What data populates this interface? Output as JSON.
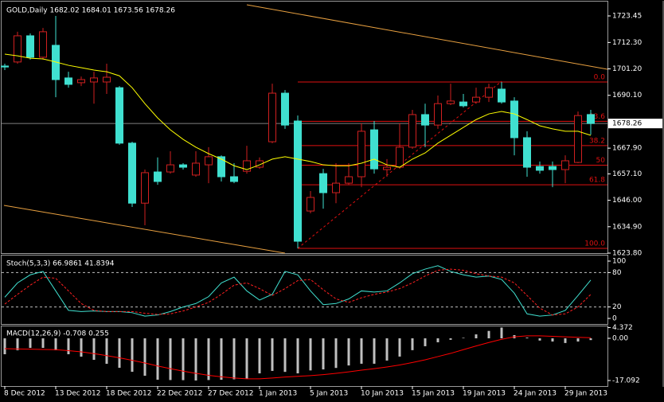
{
  "chart_data": [
    {
      "type": "candlestick",
      "title": "GOLD,Daily  1682.02 1684.01 1673.56 1678.26",
      "categories": [
        "8 Dec 2012",
        null,
        null,
        null,
        "13 Dec 2012",
        null,
        null,
        null,
        "18 Dec 2012",
        null,
        null,
        null,
        "22 Dec 2012",
        null,
        null,
        null,
        "27 Dec 2012",
        null,
        null,
        null,
        "1 Jan 2013",
        null,
        null,
        null,
        "5 Jan 2013",
        null,
        null,
        null,
        "10 Jan 2013",
        null,
        null,
        null,
        "15 Jan 2013",
        null,
        null,
        null,
        "19 Jan 2013",
        null,
        null,
        null,
        "24 Jan 2013",
        null,
        null,
        null,
        "29 Jan 2013",
        null,
        null
      ],
      "open": [
        1702.4,
        1704.1,
        1715.1,
        1706.1,
        1711.1,
        1697.4,
        1695.4,
        1695.7,
        1695.7,
        1693.3,
        1670.0,
        1644.8,
        1657.9,
        1657.9,
        1660.9,
        1656.6,
        1660.9,
        1664.3,
        1655.9,
        1658.2,
        1659.9,
        1670.6,
        1691.0,
        1679.3,
        1641.5,
        1657.2,
        1649.2,
        1653.2,
        1655.9,
        1675.6,
        1658.9,
        1659.9,
        1668.3,
        1682.0,
        1677.6,
        1686.6,
        1687.3,
        1687.3,
        1689.3,
        1692.7,
        1687.7,
        1672.3,
        1660.2,
        1660.2,
        1658.9,
        1661.9,
        1682.02
      ],
      "high": [
        1703.4,
        1716.8,
        1716.1,
        1718.4,
        1723.45,
        1700.0,
        1698.0,
        1700.0,
        1703.4,
        1694.0,
        1670.6,
        1658.9,
        1664.0,
        1666.6,
        1661.6,
        1666.6,
        1668.3,
        1664.9,
        1661.6,
        1668.9,
        1664.0,
        1695.0,
        1692.3,
        1681.6,
        1649.9,
        1659.2,
        1661.6,
        1661.6,
        1678.3,
        1679.3,
        1663.3,
        1678.3,
        1684.0,
        1686.6,
        1690.0,
        1695.0,
        1690.7,
        1693.3,
        1695.0,
        1695.7,
        1689.3,
        1675.0,
        1662.3,
        1662.3,
        1664.9,
        1683.3,
        1684.01
      ],
      "low": [
        1700.7,
        1703.4,
        1705.1,
        1705.1,
        1689.3,
        1693.3,
        1694.0,
        1686.6,
        1690.7,
        1669.3,
        1643.2,
        1635.5,
        1652.5,
        1657.2,
        1658.9,
        1655.9,
        1653.2,
        1653.9,
        1653.2,
        1657.2,
        1659.2,
        1670.0,
        1676.0,
        1625.8,
        1640.5,
        1642.5,
        1644.8,
        1652.5,
        1651.5,
        1657.2,
        1655.9,
        1659.2,
        1667.6,
        1668.3,
        1676.0,
        1686.0,
        1685.0,
        1686.6,
        1687.3,
        1686.6,
        1664.9,
        1655.9,
        1657.2,
        1651.5,
        1653.2,
        1661.6,
        1673.56
      ],
      "close": [
        1702.0,
        1715.1,
        1706.1,
        1716.8,
        1696.7,
        1694.7,
        1696.7,
        1697.4,
        1697.7,
        1670.0,
        1644.8,
        1657.6,
        1653.9,
        1660.9,
        1659.9,
        1661.6,
        1664.3,
        1655.9,
        1653.9,
        1662.6,
        1662.6,
        1691.0,
        1677.6,
        1628.8,
        1647.2,
        1649.2,
        1653.2,
        1655.9,
        1675.0,
        1659.2,
        1659.9,
        1668.3,
        1682.0,
        1677.6,
        1686.6,
        1687.7,
        1685.7,
        1689.3,
        1693.3,
        1687.3,
        1672.3,
        1659.9,
        1658.6,
        1658.9,
        1662.6,
        1681.6,
        1678.26
      ],
      "up_color": "#d02020",
      "down_color": "#40e0d0",
      "ma": {
        "color": "#ffff00",
        "values": [
          1707.4,
          1706.7,
          1705.7,
          1705.4,
          1704.1,
          1702.7,
          1701.7,
          1700.7,
          1700.0,
          1698.3,
          1693.3,
          1686.6,
          1680.6,
          1675.6,
          1671.6,
          1668.3,
          1665.6,
          1663.3,
          1660.5,
          1658.9,
          1660.9,
          1663.3,
          1664.3,
          1663.3,
          1662.3,
          1660.9,
          1660.5,
          1660.5,
          1661.6,
          1663.3,
          1660.9,
          1659.9,
          1663.3,
          1665.9,
          1670.0,
          1673.3,
          1676.6,
          1679.9,
          1682.3,
          1683.3,
          1682.3,
          1679.9,
          1677.3,
          1676.0,
          1675.0,
          1675.0,
          1673.3
        ]
      },
      "fibonacci": {
        "color": "#e01010",
        "high": 1695.7,
        "low": 1625.8,
        "levels": [
          {
            "value": 0,
            "label": "0.0"
          },
          23.6,
          38.2,
          50,
          61.8,
          {
            "value": 100,
            "label": "100.0"
          }
        ]
      },
      "last_price": 1678.26,
      "ylim": [
        1623.8,
        1729.47
      ],
      "yticks": [
        1723.45,
        {
          "value": 1712.3,
          "label": "1712.30"
        },
        {
          "value": 1701.2,
          "label": "1701.20"
        },
        {
          "value": 1690.1,
          "label": "1690.10"
        },
        {
          "value": 1667.9,
          "label": "1667.90"
        },
        {
          "value": 1657.1,
          "label": "1657.10"
        },
        {
          "value": 1646.0,
          "label": "1646.00"
        },
        {
          "value": 1634.9,
          "label": "1634.90"
        },
        {
          "value": 1623.8,
          "label": "1623.80"
        }
      ]
    },
    {
      "type": "line",
      "title": "Stoch(5,3,3) 66.9861 41.8394",
      "series": [
        {
          "color": "#40e0d0",
          "values": [
            37,
            62,
            76,
            82,
            48,
            14,
            12,
            13,
            12,
            12,
            10,
            4,
            6,
            12,
            20,
            26,
            38,
            62,
            72,
            48,
            32,
            42,
            82,
            76,
            48,
            24,
            26,
            34,
            48,
            46,
            48,
            62,
            78,
            86,
            92,
            82,
            76,
            72,
            74,
            68,
            44,
            8,
            4,
            6,
            14,
            40,
            66.9861
          ]
        },
        {
          "color": "#ff2020",
          "dash": true,
          "values": [
            25,
            42,
            58,
            72,
            70,
            48,
            26,
            14,
            12,
            12,
            12,
            9,
            7,
            8,
            13,
            20,
            28,
            42,
            58,
            62,
            52,
            40,
            52,
            66,
            68,
            50,
            34,
            28,
            36,
            42,
            46,
            52,
            62,
            74,
            84,
            86,
            84,
            78,
            74,
            72,
            62,
            40,
            18,
            6,
            8,
            20,
            41.8394
          ]
        }
      ],
      "levels": [
        80,
        20
      ],
      "ylim": [
        -9.7,
        109.7
      ],
      "yticks": [
        100,
        80,
        20,
        0
      ]
    },
    {
      "type": "macd",
      "title": "MACD(12,26,9) -0.708 0.255",
      "series": [
        {
          "type": "bar",
          "color": "#c0c0c0",
          "values": [
            -6.45,
            -4.84,
            -3.87,
            -3.87,
            -4.84,
            -6.45,
            -7.42,
            -8.71,
            -10.32,
            -11.94,
            -13.55,
            -15.16,
            -16.77,
            -16.9,
            -16.95,
            -17.09,
            -16.9,
            -16.8,
            -16.6,
            -16.4,
            -14.2,
            -13.2,
            -13.6,
            -14.2,
            -13.0,
            -12.6,
            -12.0,
            -11.0,
            -10.3,
            -10.3,
            -9.0,
            -7.4,
            -4.8,
            -3.2,
            -1.6,
            -0.6,
            0.2,
            1.6,
            3.0,
            4.372,
            1.3,
            0.3,
            -0.9,
            -1.3,
            -1.9,
            -1.3,
            -0.708
          ]
        },
        {
          "type": "line",
          "color": "#ff0000",
          "values": [
            -4.2,
            -4.3,
            -4.4,
            -4.5,
            -4.6,
            -5.0,
            -5.5,
            -6.2,
            -7.0,
            -7.9,
            -8.9,
            -10.0,
            -11.2,
            -12.3,
            -13.3,
            -14.2,
            -15.0,
            -15.6,
            -16.1,
            -16.4,
            -16.4,
            -16.1,
            -15.7,
            -15.4,
            -15.1,
            -14.7,
            -14.2,
            -13.6,
            -12.9,
            -12.3,
            -11.6,
            -10.8,
            -9.8,
            -8.7,
            -7.4,
            -6.1,
            -4.6,
            -3.1,
            -1.7,
            -0.4,
            0.6,
            1.0,
            1.0,
            0.8,
            0.6,
            0.4,
            0.255
          ]
        }
      ],
      "ylim": [
        -19.35,
        4.84
      ],
      "yticks": [
        4.372,
        {
          "value": 0,
          "label": "0.00"
        },
        -17.092
      ]
    }
  ]
}
